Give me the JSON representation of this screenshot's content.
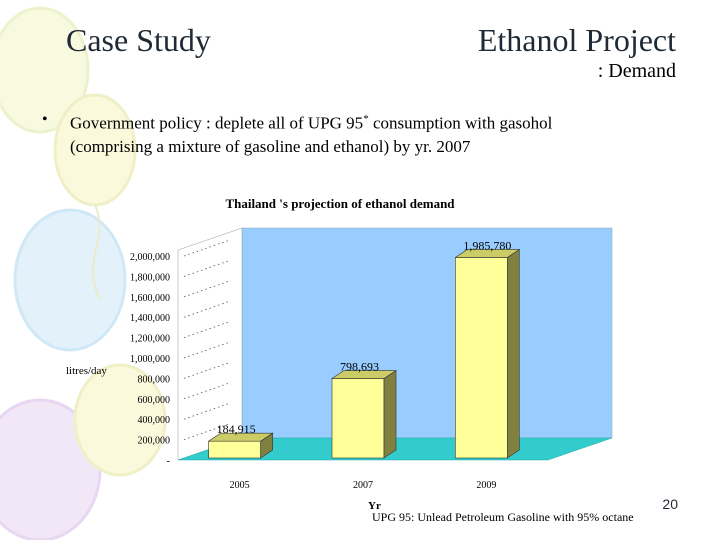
{
  "slide": {
    "title_left": "Case Study",
    "title_right": "Ethanol Project",
    "subtitle": ": Demand",
    "bullet_mark": "•",
    "bullet_line1_pre": "Government policy : deplete all of UPG 95",
    "bullet_sup": "*",
    "bullet_line1_post": " consumption with gasohol",
    "bullet_line2": "(comprising a mixture of gasoline and ethanol) by yr. 2007",
    "page_number": "20",
    "footnote": "UPG 95: Unlead Petroleum Gasoline with 95% octane"
  },
  "colors": {
    "wall": "#99ccff",
    "floor": "#33cccc",
    "bar_front": "#ffff99",
    "bar_side": "#808040",
    "bar_top": "#cccc66"
  },
  "chart_data": {
    "type": "bar",
    "title": "Thailand 's projection of ethanol demand",
    "ylabel": "litres/day",
    "xlabel": "Yr",
    "categories": [
      "2005",
      "2007",
      "2009"
    ],
    "values": [
      184915,
      798693,
      1985780
    ],
    "value_labels": [
      "184,915",
      "798,693",
      "1,985,780"
    ],
    "ylim": [
      0,
      2000000
    ],
    "yticks": [
      0,
      200000,
      400000,
      600000,
      800000,
      1000000,
      1200000,
      1400000,
      1600000,
      1800000,
      2000000
    ],
    "ytick_labels": [
      "-",
      "200,000",
      "400,000",
      "600,000",
      "800,000",
      "1,000,000",
      "1,200,000",
      "1,400,000",
      "1,600,000",
      "1,800,000",
      "2,000,000"
    ],
    "grid": true,
    "legend": "none",
    "style": "3d"
  }
}
